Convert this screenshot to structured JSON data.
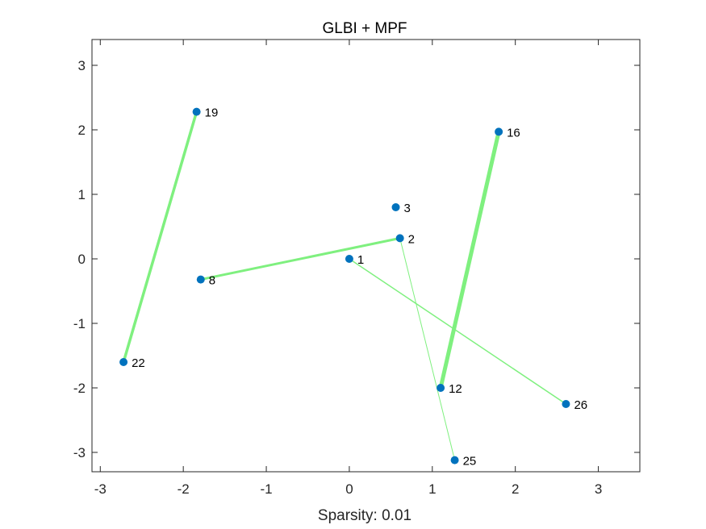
{
  "chart_data": {
    "type": "scatter",
    "title": "GLBI + MPF",
    "xlabel": "Sparsity: 0.01",
    "ylabel": "",
    "xlim": [
      -3.1,
      3.5
    ],
    "ylim": [
      -3.3,
      3.4
    ],
    "xticks": [
      "-3",
      "-2",
      "-1",
      "0",
      "1",
      "2",
      "3"
    ],
    "yticks": [
      "-3",
      "-2",
      "-1",
      "0",
      "1",
      "2",
      "3"
    ],
    "grid": false,
    "node_color": "#0072BD",
    "edge_color": "#7FF07F",
    "nodes": [
      {
        "label": "1",
        "x": 0.0,
        "y": 0.0
      },
      {
        "label": "2",
        "x": 0.61,
        "y": 0.32
      },
      {
        "label": "3",
        "x": 0.56,
        "y": 0.8
      },
      {
        "label": "8",
        "x": -1.79,
        "y": -0.32
      },
      {
        "label": "12",
        "x": 1.1,
        "y": -2.0
      },
      {
        "label": "16",
        "x": 1.8,
        "y": 1.97
      },
      {
        "label": "19",
        "x": -1.84,
        "y": 2.28
      },
      {
        "label": "22",
        "x": -2.72,
        "y": -1.6
      },
      {
        "label": "25",
        "x": 1.27,
        "y": -3.12
      },
      {
        "label": "26",
        "x": 2.61,
        "y": -2.25
      }
    ],
    "edges": [
      {
        "from": "19",
        "to": "22",
        "weight": 3.5
      },
      {
        "from": "16",
        "to": "12",
        "weight": 5
      },
      {
        "from": "8",
        "to": "2",
        "weight": 3
      },
      {
        "from": "1",
        "to": "26",
        "weight": 1.5
      },
      {
        "from": "2",
        "to": "25",
        "weight": 1
      }
    ]
  }
}
